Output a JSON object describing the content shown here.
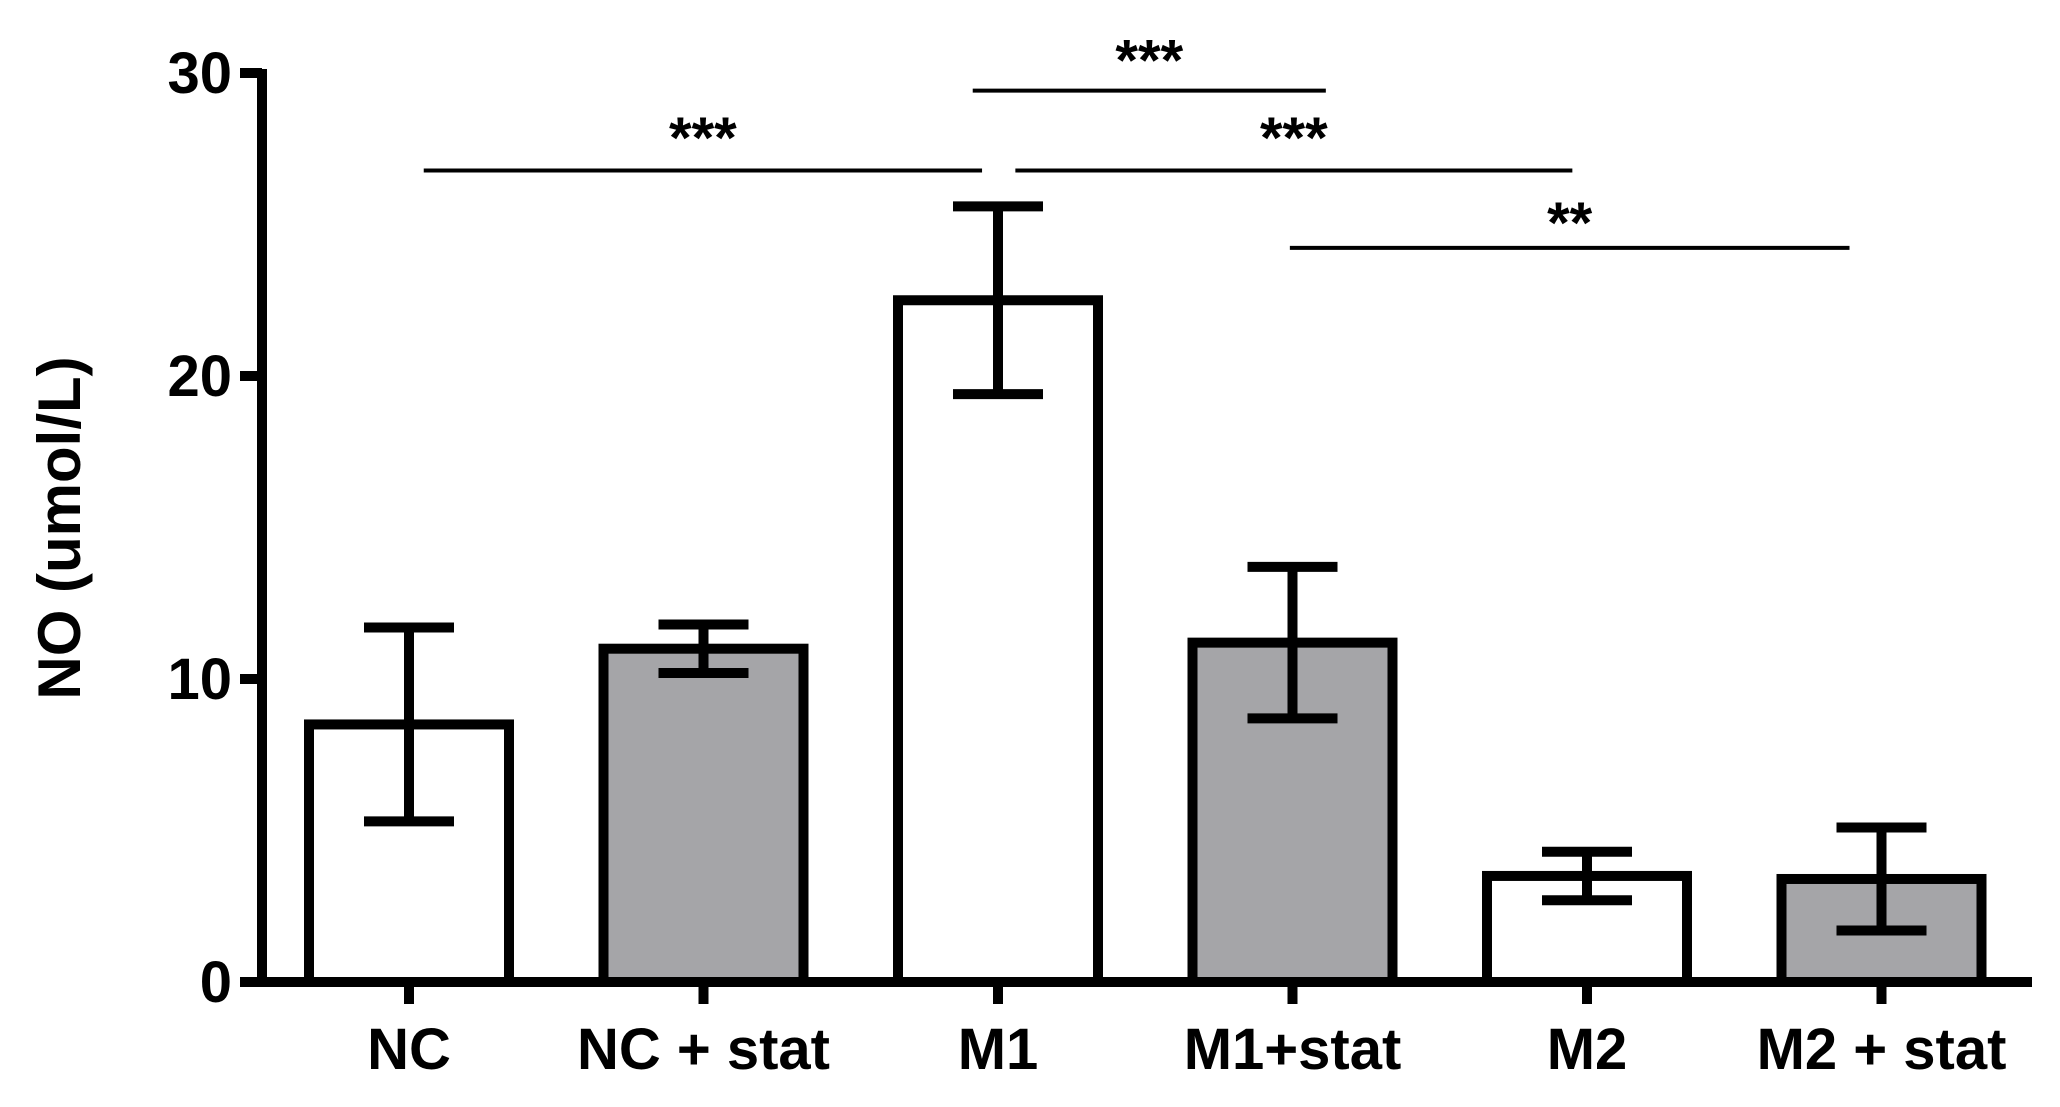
{
  "chart_data": {
    "type": "bar",
    "y_label": "NO (umol/L)",
    "categories": [
      "NC",
      "NC + stat",
      "M1",
      "M1+stat",
      "M2",
      "M2 + stat"
    ],
    "values": [
      8.5,
      11.0,
      22.5,
      11.2,
      3.5,
      3.4
    ],
    "errors": [
      3.2,
      0.8,
      3.1,
      2.5,
      0.8,
      1.7
    ],
    "colors": [
      "#ffffff",
      "#a5a5a8",
      "#ffffff",
      "#a5a5a8",
      "#ffffff",
      "#a5a5a8"
    ],
    "ylim": [
      0,
      30
    ],
    "yticks": [
      0,
      10,
      20,
      30
    ],
    "annotations": [
      "***",
      "***",
      "***",
      "**"
    ]
  }
}
